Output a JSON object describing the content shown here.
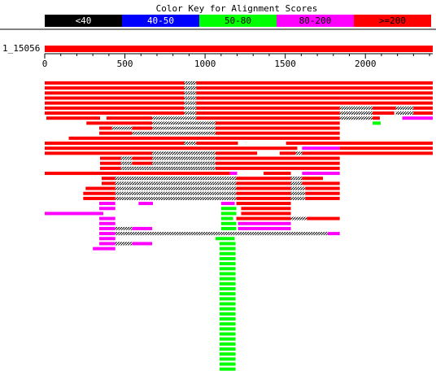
{
  "chart_data": {
    "type": "alignment-graphic",
    "title": "Color Key for Alignment Scores",
    "query_label": "1_15056",
    "x_range": [
      0,
      2420
    ],
    "ticks": [
      0,
      500,
      1000,
      1500,
      2000
    ],
    "tick_labels": [
      "0",
      "500",
      "1000",
      "1500",
      "2000"
    ],
    "key": [
      {
        "label": "<40",
        "color": "#000000",
        "text_color": "#ffffff"
      },
      {
        "label": "40-50",
        "color": "#0000ff",
        "text_color": "#ffffff"
      },
      {
        "label": "50-80",
        "color": "#00ff00",
        "text_color": "#000000"
      },
      {
        "label": "80-200",
        "color": "#ff00ff",
        "text_color": "#000000"
      },
      {
        "label": ">=200",
        "color": "#ff0000",
        "text_color": "#000000"
      }
    ],
    "colors": {
      "red": "#ff0000",
      "magenta": "#ff00ff",
      "green": "#00ff00",
      "gap": "#000000"
    },
    "hits": [
      {
        "segs": [
          [
            0,
            870,
            "r"
          ],
          [
            870,
            945,
            "gap"
          ],
          [
            945,
            2420,
            "r"
          ]
        ]
      },
      {
        "segs": [
          [
            0,
            870,
            "r"
          ],
          [
            870,
            945,
            "gap"
          ],
          [
            945,
            2420,
            "r"
          ]
        ]
      },
      {
        "segs": [
          [
            0,
            870,
            "r"
          ],
          [
            870,
            945,
            "gap"
          ],
          [
            945,
            2420,
            "r"
          ]
        ]
      },
      {
        "segs": [
          [
            0,
            870,
            "r"
          ],
          [
            870,
            945,
            "gap"
          ],
          [
            945,
            2420,
            "r"
          ]
        ]
      },
      {
        "segs": [
          [
            0,
            870,
            "r"
          ],
          [
            870,
            945,
            "gap"
          ],
          [
            945,
            2420,
            "r"
          ]
        ]
      },
      {
        "segs": [
          [
            0,
            870,
            "r"
          ],
          [
            870,
            945,
            "gap"
          ],
          [
            945,
            1840,
            "r"
          ],
          [
            1840,
            2045,
            "gap"
          ],
          [
            2045,
            2190,
            "r"
          ],
          [
            2190,
            2300,
            "gap"
          ],
          [
            2300,
            2420,
            "r"
          ]
        ]
      },
      {
        "segs": [
          [
            0,
            870,
            "r"
          ],
          [
            870,
            945,
            "gap"
          ],
          [
            945,
            1840,
            "r"
          ],
          [
            1840,
            2045,
            "gap"
          ],
          [
            2045,
            2180,
            "r"
          ],
          [
            2190,
            2300,
            "gap"
          ],
          [
            2300,
            2420,
            "r"
          ]
        ]
      },
      {
        "segs": [
          [
            10,
            345,
            "r"
          ],
          [
            385,
            670,
            "r"
          ],
          [
            670,
            945,
            "gap"
          ],
          [
            945,
            1840,
            "r"
          ],
          [
            1840,
            2045,
            "gap"
          ],
          [
            2045,
            2090,
            "r"
          ],
          [
            2230,
            2420,
            "m"
          ]
        ]
      },
      {
        "segs": [
          [
            260,
            670,
            "r"
          ],
          [
            670,
            1065,
            "gap"
          ],
          [
            1065,
            1840,
            "r"
          ],
          [
            2045,
            2095,
            "g"
          ]
        ]
      },
      {
        "segs": [
          [
            340,
            420,
            "r"
          ],
          [
            420,
            545,
            "gap"
          ],
          [
            545,
            670,
            "r"
          ],
          [
            670,
            1065,
            "gap"
          ],
          [
            1065,
            1840,
            "r"
          ]
        ]
      },
      {
        "segs": [
          [
            340,
            545,
            "r"
          ],
          [
            545,
            670,
            "gap"
          ],
          [
            670,
            1065,
            "gap"
          ],
          [
            1065,
            1840,
            "r"
          ]
        ]
      },
      {
        "segs": [
          [
            150,
            670,
            "r"
          ],
          [
            670,
            1065,
            "r"
          ],
          [
            1065,
            1840,
            "r"
          ]
        ]
      },
      {
        "segs": [
          [
            0,
            870,
            "r"
          ],
          [
            870,
            945,
            "gap"
          ],
          [
            945,
            1205,
            "r"
          ],
          [
            1505,
            2420,
            "r"
          ]
        ]
      },
      {
        "segs": [
          [
            0,
            1575,
            "r"
          ],
          [
            1605,
            1840,
            "m"
          ],
          [
            1840,
            2420,
            "r"
          ]
        ]
      },
      {
        "segs": [
          [
            0,
            670,
            "r"
          ],
          [
            670,
            1065,
            "gap"
          ],
          [
            1065,
            1325,
            "r"
          ],
          [
            1465,
            1565,
            "r"
          ],
          [
            1565,
            1605,
            "gap"
          ],
          [
            1605,
            2420,
            "r"
          ]
        ]
      },
      {
        "segs": [
          [
            345,
            475,
            "r"
          ],
          [
            475,
            545,
            "gap"
          ],
          [
            545,
            670,
            "r"
          ],
          [
            670,
            1065,
            "gap"
          ],
          [
            1065,
            1840,
            "r"
          ]
        ]
      },
      {
        "segs": [
          [
            345,
            475,
            "r"
          ],
          [
            475,
            545,
            "gap"
          ],
          [
            545,
            670,
            "r"
          ],
          [
            670,
            1065,
            "gap"
          ],
          [
            1065,
            1840,
            "r"
          ]
        ]
      },
      {
        "segs": [
          [
            345,
            475,
            "r"
          ],
          [
            475,
            670,
            "gap"
          ],
          [
            670,
            1065,
            "gap"
          ],
          [
            1065,
            1840,
            "r"
          ]
        ]
      },
      {
        "segs": [
          [
            0,
            1155,
            "r"
          ],
          [
            1155,
            1200,
            "m"
          ],
          [
            1365,
            1535,
            "r"
          ],
          [
            1605,
            1840,
            "m"
          ]
        ]
      },
      {
        "segs": [
          [
            355,
            440,
            "r"
          ],
          [
            440,
            1195,
            "gap"
          ],
          [
            1195,
            1535,
            "r"
          ],
          [
            1535,
            1605,
            "gap"
          ],
          [
            1605,
            1735,
            "r"
          ]
        ]
      },
      {
        "segs": [
          [
            355,
            440,
            "r"
          ],
          [
            440,
            1195,
            "gap"
          ],
          [
            1195,
            1535,
            "r"
          ],
          [
            1535,
            1605,
            "gap"
          ],
          [
            1605,
            1840,
            "r"
          ]
        ]
      },
      {
        "segs": [
          [
            255,
            440,
            "r"
          ],
          [
            440,
            1195,
            "gap"
          ],
          [
            1195,
            1535,
            "r"
          ],
          [
            1535,
            1625,
            "gap"
          ],
          [
            1625,
            1840,
            "r"
          ]
        ]
      },
      {
        "segs": [
          [
            240,
            440,
            "r"
          ],
          [
            440,
            1195,
            "gap"
          ],
          [
            1195,
            1535,
            "r"
          ],
          [
            1535,
            1625,
            "gap"
          ],
          [
            1625,
            1840,
            "r"
          ]
        ]
      },
      {
        "segs": [
          [
            240,
            440,
            "r"
          ],
          [
            440,
            1195,
            "gap"
          ],
          [
            1195,
            1535,
            "r"
          ],
          [
            1535,
            1625,
            "gap"
          ],
          [
            1625,
            1840,
            "r"
          ]
        ]
      },
      {
        "segs": [
          [
            340,
            440,
            "m"
          ],
          [
            585,
            675,
            "m"
          ],
          [
            1100,
            1185,
            "m"
          ],
          [
            1195,
            1535,
            "r"
          ]
        ]
      },
      {
        "segs": [
          [
            340,
            440,
            "m"
          ],
          [
            1100,
            1195,
            "g"
          ],
          [
            1225,
            1535,
            "r"
          ]
        ]
      },
      {
        "segs": [
          [
            0,
            365,
            "m"
          ],
          [
            1100,
            1195,
            "g"
          ],
          [
            1225,
            1535,
            "r"
          ]
        ]
      },
      {
        "segs": [
          [
            340,
            440,
            "m"
          ],
          [
            1100,
            1175,
            "g"
          ],
          [
            1195,
            1535,
            "r"
          ],
          [
            1535,
            1635,
            "gap"
          ],
          [
            1635,
            1840,
            "r"
          ]
        ]
      },
      {
        "segs": [
          [
            340,
            440,
            "m"
          ],
          [
            1100,
            1195,
            "g"
          ],
          [
            1205,
            1535,
            "m"
          ]
        ]
      },
      {
        "segs": [
          [
            340,
            440,
            "m"
          ],
          [
            440,
            545,
            "gap"
          ],
          [
            545,
            670,
            "m"
          ],
          [
            1100,
            1195,
            "g"
          ],
          [
            1205,
            1535,
            "m"
          ]
        ]
      },
      {
        "segs": [
          [
            340,
            440,
            "m"
          ],
          [
            440,
            1100,
            "gap"
          ],
          [
            1100,
            1195,
            "gap"
          ],
          [
            1195,
            1765,
            "gap"
          ],
          [
            1765,
            1840,
            "m"
          ]
        ]
      },
      {
        "segs": [
          [
            340,
            440,
            "m"
          ],
          [
            1065,
            1185,
            "g"
          ]
        ]
      },
      {
        "segs": [
          [
            340,
            440,
            "m"
          ],
          [
            440,
            545,
            "gap"
          ],
          [
            545,
            670,
            "m"
          ],
          [
            1090,
            1190,
            "g"
          ]
        ]
      },
      {
        "segs": [
          [
            300,
            440,
            "m"
          ],
          [
            1090,
            1190,
            "g"
          ]
        ]
      },
      {
        "segs": [
          [
            1090,
            1190,
            "g"
          ]
        ]
      },
      {
        "segs": [
          [
            1090,
            1190,
            "g"
          ]
        ]
      },
      {
        "segs": [
          [
            1090,
            1190,
            "g"
          ]
        ]
      },
      {
        "segs": [
          [
            1090,
            1190,
            "g"
          ]
        ]
      },
      {
        "segs": [
          [
            1090,
            1190,
            "g"
          ]
        ]
      },
      {
        "segs": [
          [
            1090,
            1190,
            "g"
          ]
        ]
      },
      {
        "segs": [
          [
            1090,
            1190,
            "g"
          ]
        ]
      },
      {
        "segs": [
          [
            1090,
            1190,
            "g"
          ]
        ]
      },
      {
        "segs": [
          [
            1090,
            1190,
            "g"
          ]
        ]
      },
      {
        "segs": [
          [
            1090,
            1190,
            "g"
          ]
        ]
      },
      {
        "segs": [
          [
            1090,
            1190,
            "g"
          ]
        ]
      },
      {
        "segs": [
          [
            1090,
            1190,
            "g"
          ]
        ]
      },
      {
        "segs": [
          [
            1090,
            1190,
            "g"
          ]
        ]
      },
      {
        "segs": [
          [
            1090,
            1190,
            "g"
          ]
        ]
      },
      {
        "segs": [
          [
            1090,
            1190,
            "g"
          ]
        ]
      },
      {
        "segs": [
          [
            1090,
            1190,
            "g"
          ]
        ]
      },
      {
        "segs": [
          [
            1090,
            1190,
            "g"
          ]
        ]
      },
      {
        "segs": [
          [
            1090,
            1190,
            "g"
          ]
        ]
      },
      {
        "segs": [
          [
            1090,
            1190,
            "g"
          ]
        ]
      },
      {
        "segs": [
          [
            1090,
            1190,
            "g"
          ]
        ]
      },
      {
        "segs": [
          [
            1090,
            1190,
            "g"
          ]
        ]
      },
      {
        "segs": [
          [
            1090,
            1190,
            "g"
          ]
        ]
      },
      {
        "segs": [
          [
            1090,
            1190,
            "g"
          ]
        ]
      },
      {
        "segs": [
          [
            1090,
            1190,
            "g"
          ]
        ]
      }
    ]
  }
}
